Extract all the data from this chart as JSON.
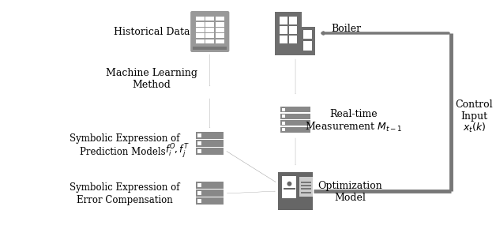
{
  "bg_color": "#ffffff",
  "gray_icon": "#999999",
  "gray_dark_icon": "#666666",
  "gray_arrow": "#888888",
  "gray_line": "#777777",
  "figsize": [
    6.28,
    2.9
  ],
  "dpi": 100,
  "labels": {
    "historical_data": "Historical Data",
    "ml_method": "Machine Learning\nMethod",
    "sym_pred_line1": "Symbolic Expression of",
    "sym_pred_line2": "Prediction Models ",
    "sym_pred_math": "$f_i^O, f_j^T$",
    "sym_error_line1": "Symbolic Expression of",
    "sym_error_line2": "Error Compensation",
    "boiler": "Boiler",
    "realtime_line1": "Real-time",
    "realtime_line2": "Measurement $M_{t-1}$",
    "opt_model_line1": "Optimization",
    "opt_model_line2": "Model",
    "control_line1": "Control",
    "control_line2": "Input",
    "control_line3": "$x_t(k)$"
  }
}
